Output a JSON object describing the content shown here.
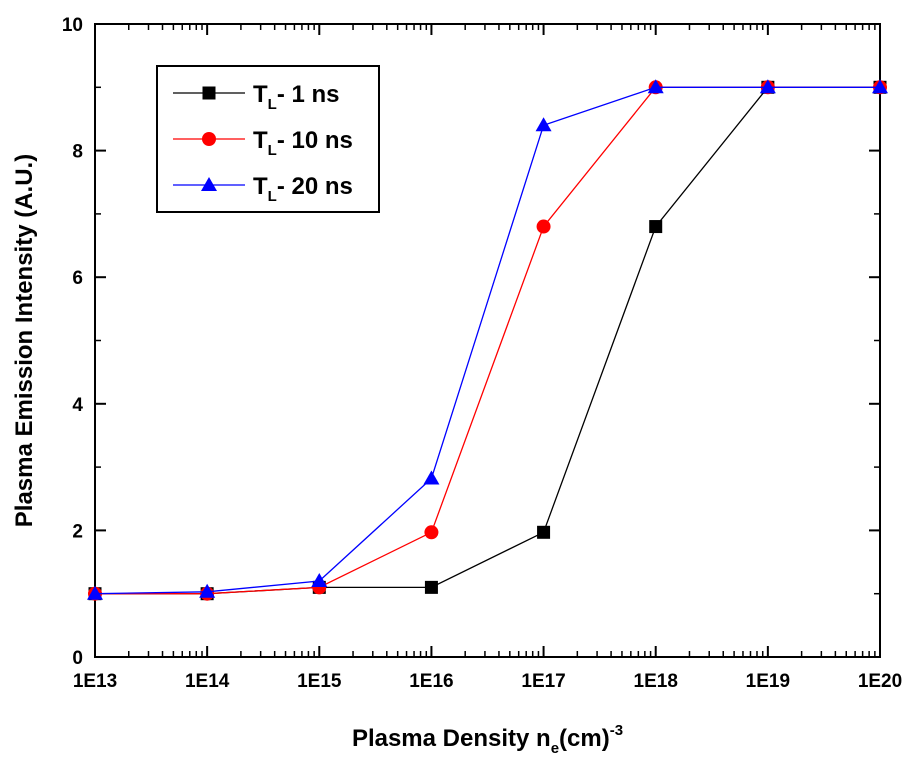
{
  "chart_data": {
    "type": "line",
    "xscale": "log",
    "xlim": [
      10000000000000.0,
      1e+20
    ],
    "ylim": [
      0,
      10
    ],
    "xticks": [
      10000000000000.0,
      100000000000000.0,
      1000000000000000.0,
      1e+16,
      1e+17,
      1e+18,
      1e+19,
      1e+20
    ],
    "xtick_labels": [
      "1E13",
      "1E14",
      "1E15",
      "1E16",
      "1E17",
      "1E18",
      "1E19",
      "1E20"
    ],
    "yticks": [
      0,
      2,
      4,
      6,
      8,
      10
    ],
    "ytick_labels": [
      "0",
      "2",
      "4",
      "6",
      "8",
      "10"
    ],
    "xlabel": {
      "main": "Plasma Density n",
      "sub": "e",
      "rest": "(cm)",
      "sup": "-3"
    },
    "ylabel": "Plasma Emission Intensity (A.U.)",
    "grid": false,
    "legend_position": "top-left",
    "series": [
      {
        "name": {
          "main": "T",
          "sub": "L",
          "rest": "- 1 ns"
        },
        "color": "#000000",
        "marker": "square",
        "x": [
          10000000000000.0,
          100000000000000.0,
          1000000000000000.0,
          1e+16,
          1e+17,
          1e+18,
          1e+19,
          1e+20
        ],
        "y": [
          1.0,
          1.0,
          1.1,
          1.1,
          1.97,
          6.8,
          9.0,
          9.0
        ]
      },
      {
        "name": {
          "main": "T",
          "sub": "L",
          "rest": "- 10 ns"
        },
        "color": "#ff0000",
        "marker": "circle",
        "x": [
          10000000000000.0,
          100000000000000.0,
          1000000000000000.0,
          1e+16,
          1e+17,
          1e+18,
          1e+19,
          1e+20
        ],
        "y": [
          1.0,
          1.0,
          1.1,
          1.97,
          6.8,
          9.0,
          9.0,
          9.0
        ]
      },
      {
        "name": {
          "main": "T",
          "sub": "L",
          "rest": "- 20 ns"
        },
        "color": "#0000ff",
        "marker": "triangle",
        "x": [
          10000000000000.0,
          100000000000000.0,
          1000000000000000.0,
          1e+16,
          1e+17,
          1e+18,
          1e+19,
          1e+20
        ],
        "y": [
          1.0,
          1.03,
          1.2,
          2.82,
          8.4,
          9.0,
          9.0,
          9.0
        ]
      }
    ]
  }
}
